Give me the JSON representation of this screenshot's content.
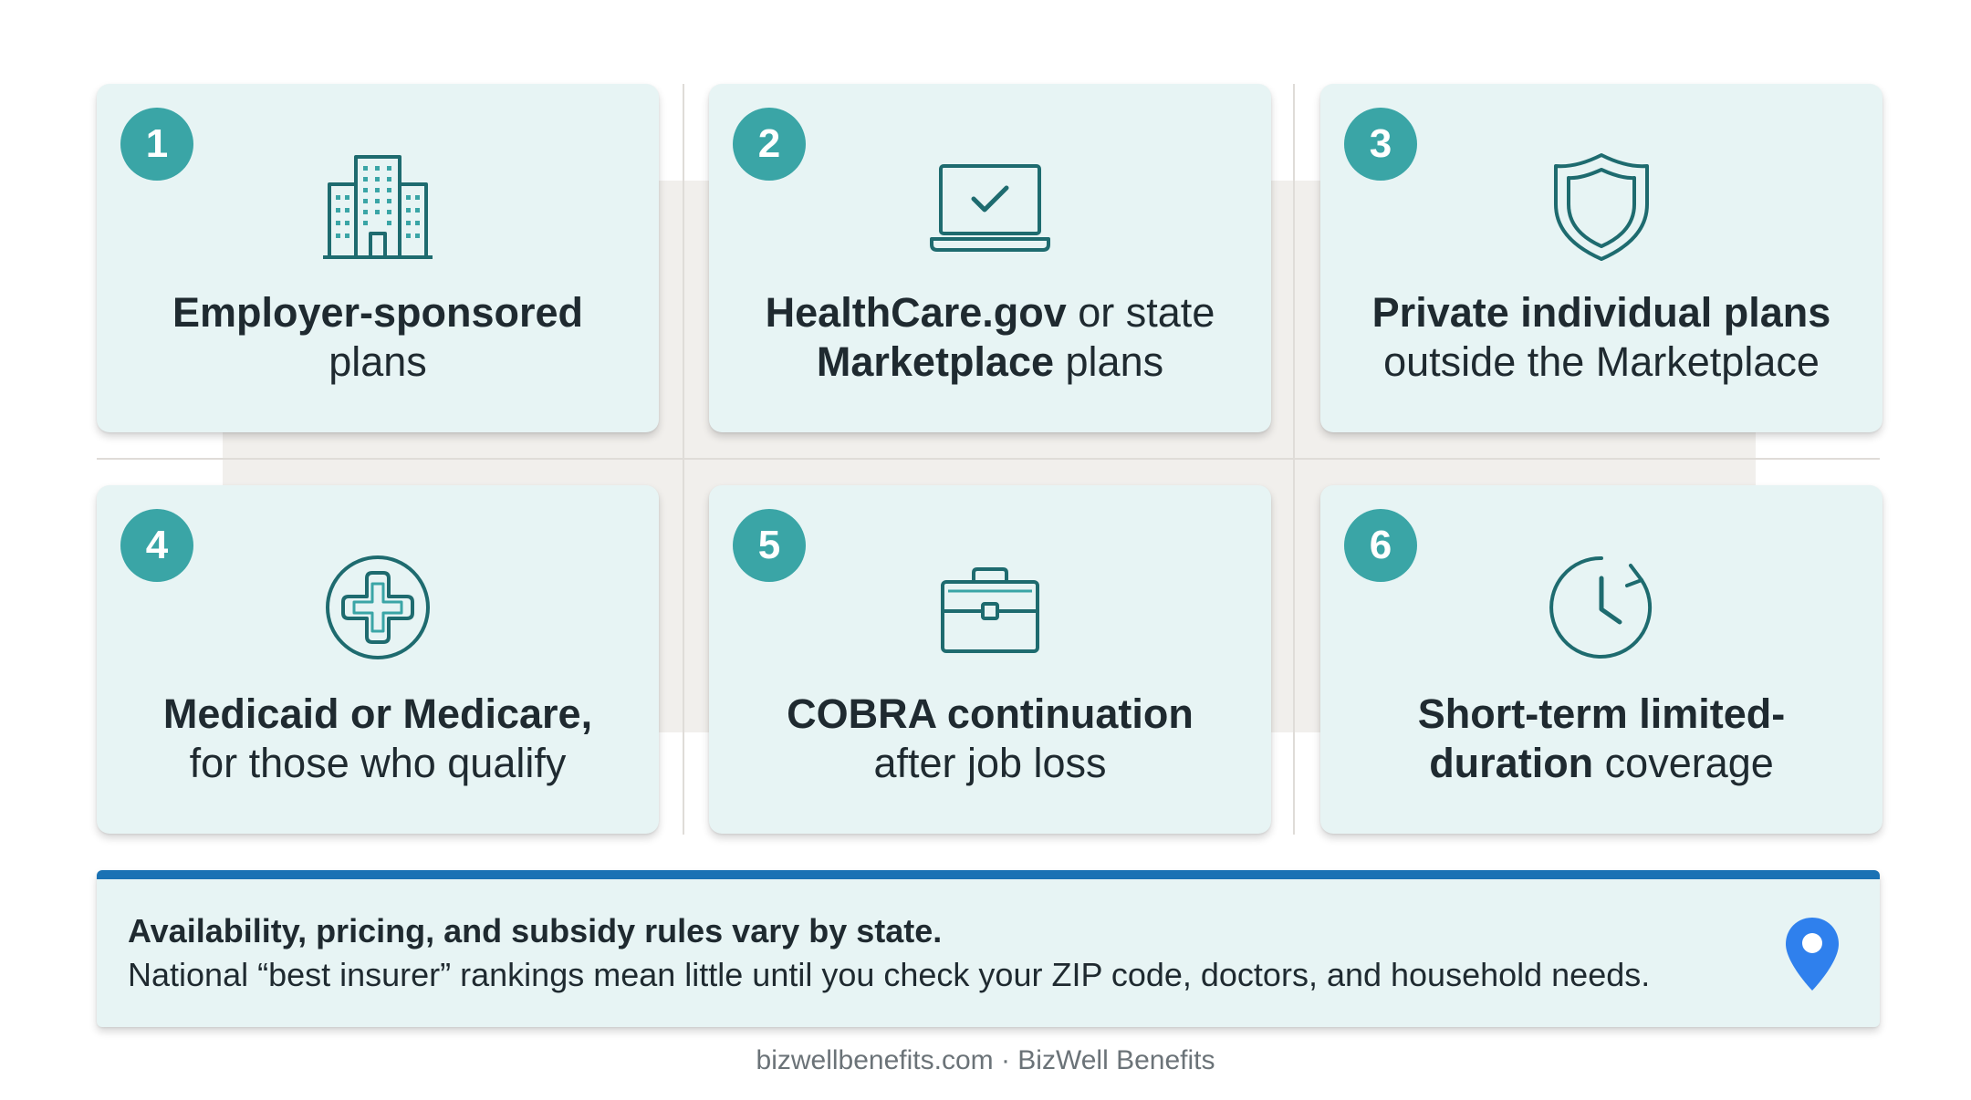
{
  "cards": [
    {
      "number": "1",
      "icon": "office-building-icon",
      "bold": "Employer-sponsored",
      "normal": "plans"
    },
    {
      "number": "2",
      "icon": "laptop-check-icon",
      "bold_a": "HealthCare.gov",
      "normal_a": " or state",
      "bold_b": "Marketplace",
      "normal_b": " plans"
    },
    {
      "number": "3",
      "icon": "shield-icon",
      "bold": "Private individual plans",
      "normal": "outside the Marketplace"
    },
    {
      "number": "4",
      "icon": "medical-cross-icon",
      "bold": "Medicaid or Medicare,",
      "normal": "for those who qualify"
    },
    {
      "number": "5",
      "icon": "briefcase-icon",
      "bold": "COBRA continuation",
      "normal": "after job loss"
    },
    {
      "number": "6",
      "icon": "clock-refresh-icon",
      "bold_a": "Short-term limited-",
      "bold_b": "duration",
      "normal_b": " coverage"
    }
  ],
  "note": {
    "title": "Availability, pricing, and subsidy rules vary by state.",
    "body": "National “best insurer” rankings mean little until you check your ZIP code, doctors, and household needs.",
    "icon": "location-pin-icon"
  },
  "footer": "bizwellbenefits.com · BizWell Benefits",
  "colors": {
    "badge": "#3aa5a6",
    "icon_stroke": "#1e6b6f",
    "card_bg": "#e7f4f4",
    "note_accent": "#1a72b4",
    "pin": "#2f80ed"
  }
}
